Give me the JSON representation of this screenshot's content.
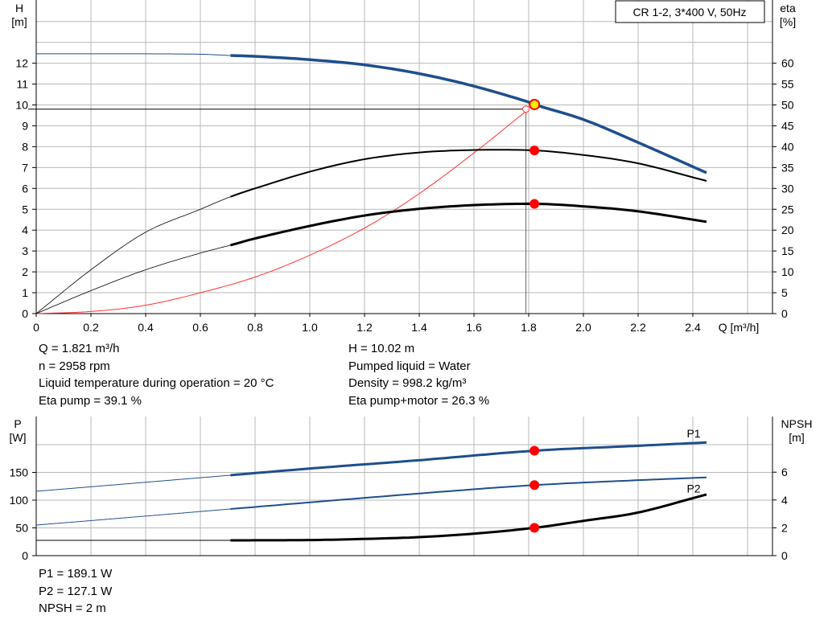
{
  "title_box": "CR 1-2, 3*400 V, 50Hz",
  "info_top_left": [
    "Q = 1.821 m³/h",
    "n = 2958 rpm",
    "Liquid temperature during operation = 20 °C",
    "Eta pump = 39.1 %"
  ],
  "info_top_right": [
    "H = 10.02 m",
    "Pumped liquid = Water",
    "Density = 998.2 kg/m³",
    "Eta pump+motor = 26.3 %"
  ],
  "info_bottom": [
    "P1 = 189.1 W",
    "P2 = 127.1 W",
    "NPSH = 2 m"
  ],
  "colors": {
    "head": "#1f4e8c",
    "efficiency": "#000000",
    "system": "#ff3333",
    "duty_marker": "#ff0000",
    "duty_head_marker": "#ffee00",
    "grid": "#b8b8b8"
  },
  "chart_data": [
    {
      "type": "line",
      "name": "pump-curve",
      "xlabel": "Q [m³/h]",
      "ylabel_left": "H\n[m]",
      "ylabel_right": "eta\n[%]",
      "xlim": [
        0,
        2.6
      ],
      "ylim_left": [
        0,
        14
      ],
      "ylim_right": [
        0,
        70
      ],
      "xticks": [
        "0",
        "0.2",
        "0.4",
        "0.6",
        "0.8",
        "1.0",
        "1.2",
        "1.4",
        "1.6",
        "1.8",
        "2.0",
        "2.2",
        "2.4"
      ],
      "yticks_left": [
        "0",
        "1",
        "2",
        "3",
        "4",
        "5",
        "6",
        "7",
        "8",
        "9",
        "10",
        "11",
        "12"
      ],
      "yticks_right": [
        "0",
        "5",
        "10",
        "15",
        "20",
        "25",
        "30",
        "35",
        "40",
        "45",
        "50",
        "55",
        "60"
      ],
      "grid": true,
      "operating_point": {
        "q": 1.821,
        "h": 10.02,
        "eta_pump": 39.1,
        "eta_total": 26.3
      },
      "series": [
        {
          "key": "head",
          "axis": "left",
          "x": [
            0,
            0.2,
            0.4,
            0.6,
            0.71,
            0.8,
            1.0,
            1.2,
            1.4,
            1.6,
            1.8,
            1.821,
            2.0,
            2.2,
            2.45
          ],
          "y": [
            12.45,
            12.45,
            12.45,
            12.43,
            12.37,
            12.33,
            12.17,
            11.92,
            11.5,
            10.9,
            10.14,
            10.02,
            9.3,
            8.2,
            6.75
          ]
        },
        {
          "key": "eta-pump",
          "axis": "right",
          "x": [
            0,
            0.2,
            0.4,
            0.6,
            0.71,
            0.8,
            1.0,
            1.2,
            1.4,
            1.6,
            1.821,
            2.0,
            2.2,
            2.45
          ],
          "y": [
            0,
            10.5,
            19.5,
            25,
            28,
            30,
            34,
            37,
            38.6,
            39.2,
            39.1,
            38,
            36,
            31.8
          ]
        },
        {
          "key": "eta-total",
          "axis": "right",
          "x": [
            0,
            0.2,
            0.4,
            0.6,
            0.71,
            0.8,
            1.0,
            1.2,
            1.4,
            1.6,
            1.821,
            2.0,
            2.2,
            2.45
          ],
          "y": [
            0,
            5.5,
            10.5,
            14.5,
            16.4,
            18,
            21,
            23.5,
            25.1,
            26,
            26.3,
            25.7,
            24.5,
            22
          ]
        },
        {
          "key": "system",
          "axis": "left",
          "x": [
            0,
            0.2,
            0.4,
            0.6,
            0.8,
            1.0,
            1.2,
            1.4,
            1.6,
            1.8
          ],
          "y": [
            0,
            0.1,
            0.4,
            1.0,
            1.75,
            2.8,
            4.1,
            5.75,
            7.7,
            9.8
          ]
        }
      ],
      "duty_point_markers": [
        {
          "series": "head",
          "x": 1.821,
          "y": 10.02
        },
        {
          "series": "eta-pump",
          "x": 1.821,
          "y": 39.1
        },
        {
          "series": "eta-total",
          "x": 1.821,
          "y": 26.3
        }
      ]
    },
    {
      "type": "line",
      "name": "power-npsh",
      "ylabel_left": "P\n[W]",
      "ylabel_right": "NPSH\n[m]",
      "xlim": [
        0,
        2.6
      ],
      "ylim_left": [
        0,
        200
      ],
      "ylim_right": [
        0,
        8
      ],
      "yticks_left": [
        "0",
        "50",
        "100",
        "150"
      ],
      "yticks_right": [
        "0",
        "2",
        "4",
        "6"
      ],
      "grid": true,
      "series": [
        {
          "name": "P1",
          "key": "p1",
          "axis": "left",
          "x": [
            0,
            0.71,
            1.0,
            1.4,
            1.821,
            2.2,
            2.45
          ],
          "y": [
            116,
            145,
            157,
            172,
            189.1,
            198,
            204
          ]
        },
        {
          "name": "P2",
          "key": "p2",
          "axis": "left",
          "x": [
            0,
            0.71,
            1.0,
            1.4,
            1.821,
            2.2,
            2.45
          ],
          "y": [
            55,
            84,
            96,
            112,
            127.1,
            136,
            141
          ]
        },
        {
          "key": "npsh",
          "axis": "right",
          "x": [
            0,
            0.71,
            1.0,
            1.2,
            1.4,
            1.6,
            1.821,
            2.0,
            2.2,
            2.45
          ],
          "y": [
            1.1,
            1.1,
            1.12,
            1.2,
            1.33,
            1.58,
            2.0,
            2.5,
            3.1,
            4.4
          ]
        }
      ],
      "duty_point_markers": [
        {
          "series": "p1",
          "x": 1.821,
          "y": 189.1
        },
        {
          "series": "p2",
          "x": 1.821,
          "y": 127.1
        },
        {
          "series": "npsh",
          "x": 1.821,
          "y": 2.0
        }
      ]
    }
  ]
}
